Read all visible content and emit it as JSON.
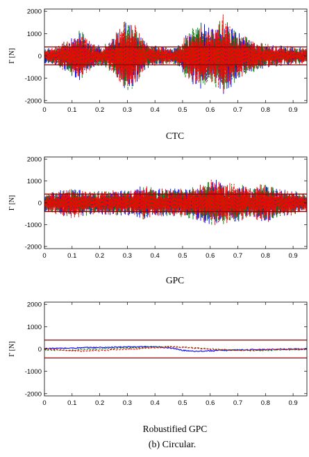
{
  "figure_caption": "(b)  Circular.",
  "colors": {
    "blue": "#0000ff",
    "green": "#008000",
    "red": "#ff0000",
    "limit": "#8b0000"
  },
  "chart_data": [
    {
      "type": "line",
      "caption": "CTC",
      "ylabel": "Γ [N]",
      "xlim": [
        0,
        0.95
      ],
      "ylim": [
        -2100,
        2100
      ],
      "xticks": [
        0,
        0.1,
        0.2,
        0.3,
        0.4,
        0.5,
        0.6,
        0.7,
        0.8,
        0.9
      ],
      "yticks": [
        -2000,
        -1000,
        0,
        1000,
        2000
      ],
      "limits": [
        400,
        -400
      ],
      "envelope": {
        "x": [
          0,
          0.03,
          0.05,
          0.07,
          0.09,
          0.11,
          0.13,
          0.15,
          0.17,
          0.19,
          0.21,
          0.23,
          0.25,
          0.27,
          0.29,
          0.31,
          0.33,
          0.35,
          0.37,
          0.39,
          0.41,
          0.43,
          0.45,
          0.47,
          0.49,
          0.51,
          0.53,
          0.55,
          0.57,
          0.59,
          0.61,
          0.63,
          0.65,
          0.67,
          0.69,
          0.71,
          0.73,
          0.75,
          0.77,
          0.79,
          0.81,
          0.83,
          0.85,
          0.87,
          0.89,
          0.91,
          0.93,
          0.95
        ],
        "amplitude": [
          350,
          400,
          500,
          700,
          900,
          1000,
          1200,
          900,
          600,
          500,
          500,
          600,
          900,
          1300,
          1600,
          1700,
          1400,
          900,
          600,
          500,
          500,
          450,
          400,
          400,
          600,
          1000,
          1300,
          1500,
          1600,
          1400,
          1300,
          1600,
          2000,
          1600,
          1200,
          1000,
          900,
          800,
          700,
          600,
          550,
          500,
          500,
          450,
          450,
          400,
          400,
          350
        ]
      },
      "series": [
        {
          "color": "blue",
          "style": "solid"
        },
        {
          "color": "green",
          "style": "dashed"
        },
        {
          "color": "red",
          "style": "dashed"
        }
      ]
    },
    {
      "type": "line",
      "caption": "GPC",
      "ylabel": "Γ [N]",
      "xlim": [
        0,
        0.95
      ],
      "ylim": [
        -2100,
        2100
      ],
      "xticks": [
        0,
        0.1,
        0.2,
        0.3,
        0.4,
        0.5,
        0.6,
        0.7,
        0.8,
        0.9
      ],
      "yticks": [
        -2000,
        -1000,
        0,
        1000,
        2000
      ],
      "limits": [
        400,
        -400
      ],
      "envelope": {
        "x": [
          0,
          0.05,
          0.1,
          0.15,
          0.2,
          0.25,
          0.3,
          0.35,
          0.4,
          0.45,
          0.5,
          0.55,
          0.6,
          0.65,
          0.7,
          0.75,
          0.8,
          0.85,
          0.9,
          0.95
        ],
        "amplitude": [
          450,
          550,
          750,
          600,
          550,
          600,
          600,
          800,
          700,
          650,
          700,
          800,
          1100,
          1000,
          900,
          700,
          1000,
          650,
          600,
          400
        ]
      },
      "series": [
        {
          "color": "blue",
          "style": "solid"
        },
        {
          "color": "green",
          "style": "dashed"
        },
        {
          "color": "red",
          "style": "dashed"
        }
      ]
    },
    {
      "type": "line",
      "caption": "Robustified GPC",
      "ylabel": "Γ [N]",
      "xlim": [
        0,
        0.95
      ],
      "ylim": [
        -2100,
        2100
      ],
      "xticks": [
        0,
        0.1,
        0.2,
        0.3,
        0.4,
        0.5,
        0.6,
        0.7,
        0.8,
        0.9
      ],
      "yticks": [
        -2000,
        -1000,
        0,
        1000,
        2000
      ],
      "limits": [
        400,
        -400
      ],
      "series": [
        {
          "color": "blue",
          "style": "solid",
          "x": [
            0,
            0.05,
            0.1,
            0.15,
            0.2,
            0.25,
            0.3,
            0.35,
            0.4,
            0.45,
            0.5,
            0.55,
            0.6,
            0.65,
            0.7,
            0.75,
            0.8,
            0.85,
            0.9,
            0.95
          ],
          "values": [
            20,
            30,
            40,
            60,
            70,
            80,
            90,
            100,
            90,
            60,
            -60,
            -100,
            -80,
            -60,
            -40,
            -30,
            -20,
            -10,
            0,
            10
          ]
        },
        {
          "color": "green",
          "style": "dashed",
          "x": [
            0,
            0.05,
            0.1,
            0.15,
            0.2,
            0.25,
            0.3,
            0.35,
            0.4,
            0.45,
            0.5,
            0.55,
            0.6,
            0.65,
            0.7,
            0.75,
            0.8,
            0.85,
            0.9,
            0.95
          ],
          "values": [
            -40,
            -60,
            -50,
            -20,
            0,
            30,
            50,
            70,
            100,
            110,
            80,
            40,
            0,
            -30,
            -50,
            -60,
            -60,
            -40,
            -30,
            -20
          ]
        },
        {
          "color": "red",
          "style": "dashed",
          "x": [
            0,
            0.05,
            0.1,
            0.15,
            0.2,
            0.25,
            0.3,
            0.35,
            0.4,
            0.45,
            0.5,
            0.55,
            0.6,
            0.65,
            0.7,
            0.75,
            0.8,
            0.85,
            0.9,
            0.95
          ],
          "values": [
            10,
            -30,
            -80,
            -90,
            -70,
            -40,
            -10,
            20,
            60,
            90,
            70,
            30,
            -10,
            -40,
            -60,
            -50,
            -30,
            -20,
            -10,
            0
          ]
        }
      ]
    }
  ]
}
